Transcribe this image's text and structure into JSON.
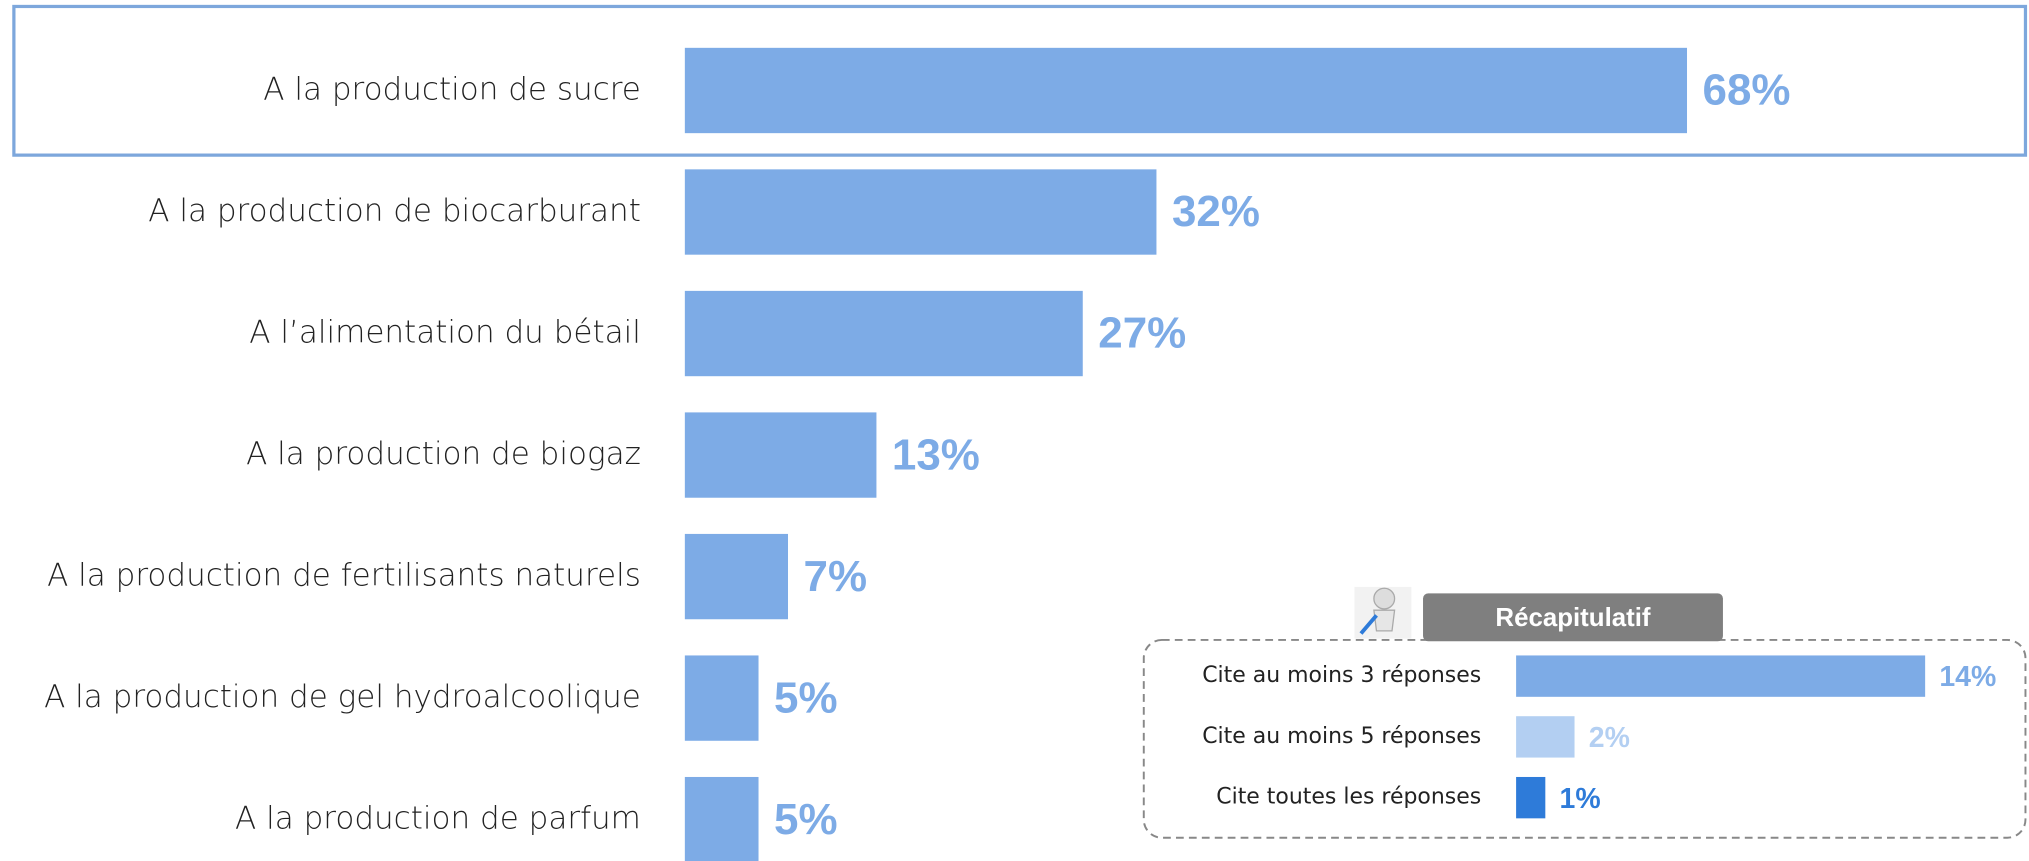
{
  "chart_data": [
    {
      "type": "hbar",
      "categories": [
        "A la production de sucre",
        "A la production de biocarburant",
        "A l’alimentation du bétail",
        "A la production de biogaz",
        "A la production de fertilisants naturels",
        "A la production de gel hydroalcoolique",
        "A la production de parfum"
      ],
      "values": [
        68,
        32,
        27,
        13,
        7,
        5,
        5
      ],
      "value_labels": [
        "68%",
        "32%",
        "27%",
        "13%",
        "7%",
        "5%",
        "5%"
      ],
      "color": "#7dabe6"
    },
    {
      "type": "hbar",
      "title": "Récapitulatif",
      "categories": [
        "Cite au moins 3 réponses",
        "Cite au moins 5 réponses",
        "Cite toutes les réponses"
      ],
      "values": [
        14,
        2,
        1
      ],
      "value_labels": [
        "14%",
        "2%",
        "1%"
      ],
      "colors": [
        "#7dabe6",
        "#b3cff2",
        "#2e7bd9"
      ]
    }
  ]
}
